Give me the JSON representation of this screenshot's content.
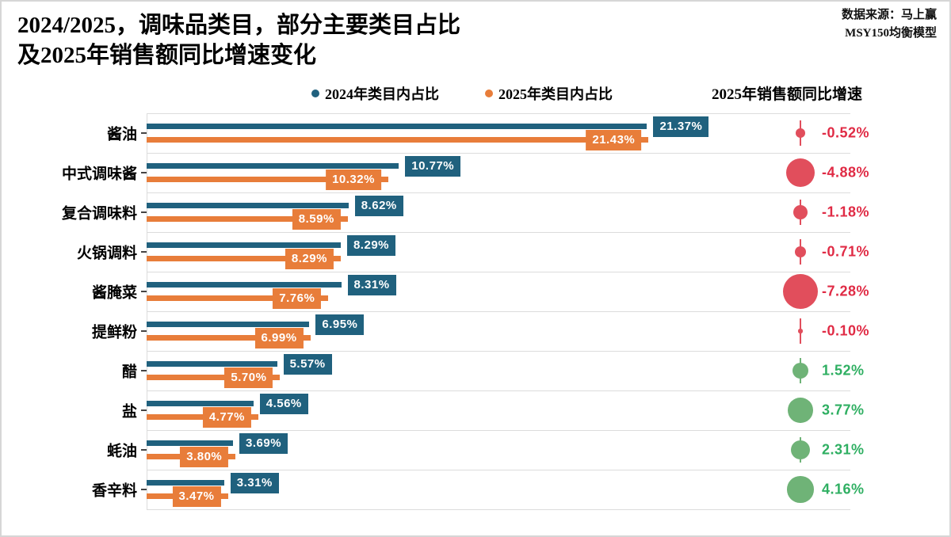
{
  "title": {
    "line1": "2024/2025，调味品类目，部分主要类目占比",
    "line2": "及2025年销售额同比增速变化"
  },
  "source": {
    "line1": "数据来源：马上赢",
    "line2": "MSY150均衡模型"
  },
  "legend": {
    "items": [
      {
        "label": "2024年类目内占比",
        "color": "#20617E"
      },
      {
        "label": "2025年类目内占比",
        "color": "#E87D3A"
      }
    ]
  },
  "growth_header": "2025年销售额同比增速",
  "colors": {
    "bar_2024": "#20617E",
    "bar_2025": "#E87D3A",
    "negative_bubble": "#E14E5C",
    "negative_text": "#E02B45",
    "positive_bubble": "#6FB377",
    "positive_text": "#2FAF62",
    "grid": "#dcdcdc"
  },
  "chart_data": {
    "type": "bar",
    "orientation": "horizontal",
    "categories": [
      "酱油",
      "中式调味酱",
      "复合调味料",
      "火锅调料",
      "酱腌菜",
      "提鲜粉",
      "醋",
      "盐",
      "蚝油",
      "香辛料"
    ],
    "series": [
      {
        "name": "2024年类目内占比",
        "values": [
          21.37,
          10.77,
          8.62,
          8.29,
          8.31,
          6.95,
          5.57,
          4.56,
          3.69,
          3.31
        ],
        "labels": [
          "21.37%",
          "10.77%",
          "8.62%",
          "8.29%",
          "8.31%",
          "6.95%",
          "5.57%",
          "4.56%",
          "3.69%",
          "3.31%"
        ]
      },
      {
        "name": "2025年类目内占比",
        "values": [
          21.43,
          10.32,
          8.59,
          8.29,
          7.76,
          6.99,
          5.7,
          4.77,
          3.8,
          3.47
        ],
        "labels": [
          "21.43%",
          "10.32%",
          "8.59%",
          "8.29%",
          "7.76%",
          "6.99%",
          "5.70%",
          "4.77%",
          "3.80%",
          "3.47%"
        ]
      }
    ],
    "bubble_series": {
      "name": "2025年销售额同比增速",
      "values": [
        -0.52,
        -4.88,
        -1.18,
        -0.71,
        -7.28,
        -0.1,
        1.52,
        3.77,
        2.31,
        4.16
      ],
      "labels": [
        "-0.52%",
        "-4.88%",
        "-1.18%",
        "-0.71%",
        "-7.28%",
        "-0.10%",
        "1.52%",
        "3.77%",
        "2.31%",
        "4.16%"
      ]
    },
    "title": "2024/2025，调味品类目，部分主要类目占比及2025年销售额同比增速变化",
    "xlabel": "",
    "ylabel": "",
    "xlim": [
      0,
      30
    ],
    "grid": "row-separators",
    "legend_position": "top"
  }
}
